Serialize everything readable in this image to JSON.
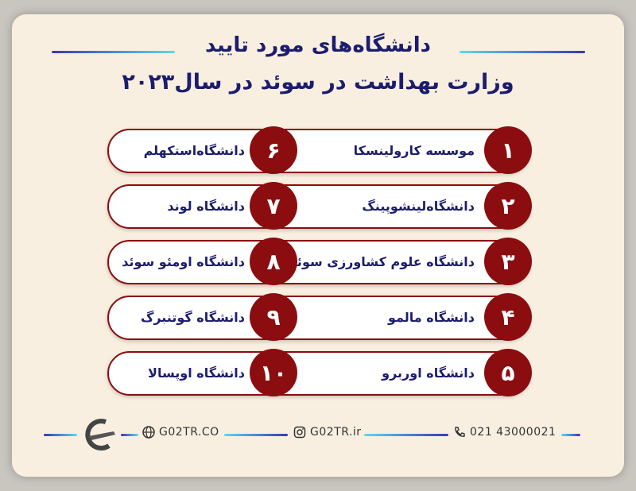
{
  "header": {
    "title_line1": "دانشگاه‌های مورد تایید",
    "title_line2": "وزارت بهداشت در سوئد در سال۲۰۲۳"
  },
  "universities": [
    {
      "rank": "۱",
      "name": "موسسه کارولینسکا"
    },
    {
      "rank": "۲",
      "name": "دانشگاه‌لینشوپینگ"
    },
    {
      "rank": "۳",
      "name": "دانشگاه علوم کشاورزی سوئد"
    },
    {
      "rank": "۴",
      "name": "دانشگاه مالمو"
    },
    {
      "rank": "۵",
      "name": "دانشگاه اوربرو"
    },
    {
      "rank": "۶",
      "name": "دانشگاه‌استکهلم"
    },
    {
      "rank": "۷",
      "name": "دانشگاه لوند"
    },
    {
      "rank": "۸",
      "name": "دانشگاه اومئو سوئد"
    },
    {
      "rank": "۹",
      "name": "دانشگاه گوتنبرگ"
    },
    {
      "rank": "۱۰",
      "name": "دانشگاه اوپسالا"
    }
  ],
  "footer": {
    "website": "G02TR.CO",
    "instagram": "G02TR.ir",
    "phone": "021 43000021",
    "icons": [
      "logo-plane-icon",
      "globe-icon",
      "instagram-icon",
      "phone-icon"
    ]
  },
  "colors": {
    "accent": "#8b0d10",
    "text": "#1c1d6e",
    "background": "#f9efe0"
  }
}
